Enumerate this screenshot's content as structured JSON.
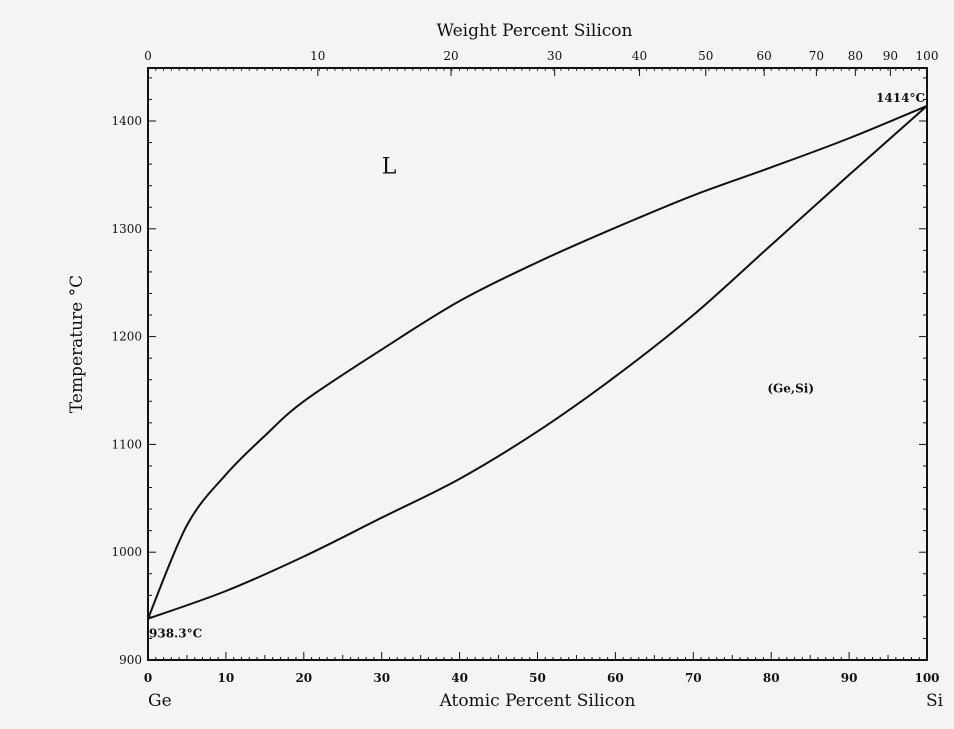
{
  "chart_data": {
    "type": "line",
    "title": "",
    "xlabel": "Atomic Percent Silicon",
    "x2label": "Weight Percent Silicon",
    "ylabel": "Temperature °C",
    "xlim": [
      0,
      100
    ],
    "ylim": [
      900,
      1450
    ],
    "x_ticks": [
      0,
      10,
      20,
      30,
      40,
      50,
      60,
      70,
      80,
      90,
      100
    ],
    "x2_ticks": [
      0,
      10,
      20,
      30,
      40,
      50,
      60,
      70,
      80,
      90,
      100
    ],
    "x2_tick_positions_at_percent": [
      0,
      21.8,
      38.9,
      52.2,
      63.1,
      71.6,
      79.1,
      85.8,
      90.8,
      95.3,
      100
    ],
    "y_ticks": [
      900,
      1000,
      1100,
      1200,
      1300,
      1400
    ],
    "end_labels": {
      "left": "Ge",
      "right": "Si"
    },
    "grid": false,
    "series": [
      {
        "x": [
          0,
          5,
          10,
          15,
          20,
          30,
          40,
          50,
          60,
          70,
          80,
          90,
          100
        ],
        "y": [
          938.3,
          1025,
          1072,
          1108,
          1140,
          1188,
          1233,
          1269,
          1301,
          1331,
          1357,
          1384,
          1414
        ]
      },
      {
        "x": [
          0,
          10,
          20,
          30,
          40,
          50,
          60,
          70,
          80,
          90,
          100
        ],
        "y": [
          938.3,
          964,
          996,
          1032,
          1068,
          1112,
          1163,
          1220,
          1285,
          1350,
          1414
        ]
      }
    ],
    "annotations": [
      {
        "text": "L",
        "x": 30,
        "y": 1370
      },
      {
        "text": "(Ge,Si)",
        "x": 84,
        "y": 1150
      },
      {
        "text": "938.3°C",
        "x": 0,
        "y": 925
      },
      {
        "text": "1414°C",
        "x": 94,
        "y": 1425
      }
    ]
  }
}
